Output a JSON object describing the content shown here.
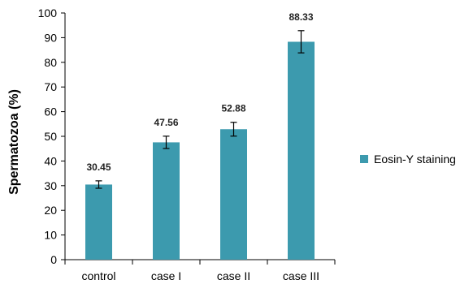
{
  "chart_data": {
    "type": "bar",
    "categories": [
      "control",
      "case I",
      "case II",
      "case III"
    ],
    "series": [
      {
        "name": "Eosin-Y staining",
        "values": [
          30.45,
          47.56,
          52.88,
          88.33
        ],
        "errors": [
          1.5,
          2.5,
          2.8,
          4.5
        ],
        "color": "#3C9AAE"
      }
    ],
    "data_labels": [
      "30.45",
      "47.56",
      "52.88",
      "88.33"
    ],
    "xlabel": "",
    "ylabel": "Spermatozoa (%)",
    "ylim": [
      0,
      100
    ],
    "yticks": [
      0,
      10,
      20,
      30,
      40,
      50,
      60,
      70,
      80,
      90,
      100
    ],
    "grid": false,
    "legend_position": "right"
  }
}
